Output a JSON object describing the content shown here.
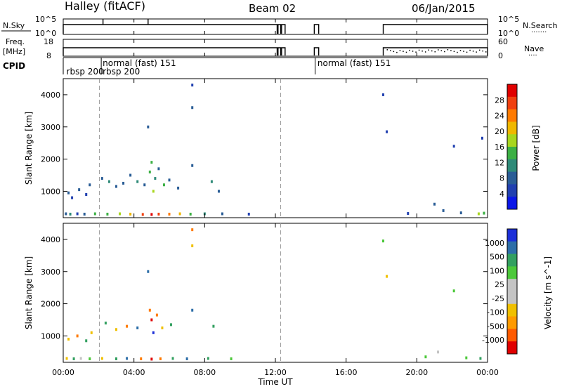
{
  "header": {
    "station": "Halley (fitACF)",
    "beam": "Beam 02",
    "date": "06/Jan/2015"
  },
  "strips": {
    "nsky_label": "N.Sky",
    "nsky_ticks": [
      "10^5",
      "10^0"
    ],
    "nsearch_label": "N.Search",
    "nsearch_ticks": [
      "10^5",
      "10^0"
    ],
    "freq_label_1": "Freq.",
    "freq_label_2": "[MHz]",
    "freq_ticks": [
      "18",
      "8"
    ],
    "nave_label": "Nave",
    "nave_ticks": [
      "60",
      "0"
    ],
    "cpid_label": "CPID",
    "cpid_entries": [
      {
        "text": "rbsp 200",
        "hour": 0.1,
        "row": "low"
      },
      {
        "text": "rbsp 200",
        "hour": 2.15,
        "row": "low"
      },
      {
        "text": "normal (fast) 151",
        "hour": 2.15,
        "row": "high"
      },
      {
        "text": "normal (fast) 151",
        "hour": 14.3,
        "row": "high"
      }
    ],
    "cpid_markers": [
      0,
      2.15,
      14.25
    ],
    "nsky_segments": [
      [
        0,
        12.1
      ],
      [
        12.15,
        12.3
      ],
      [
        12.35,
        12.55
      ],
      [
        14.2,
        14.45
      ],
      [
        18.1,
        24
      ]
    ]
  },
  "x_axis": {
    "label": "Time UT",
    "ticks": [
      "00:00",
      "04:00",
      "08:00",
      "12:00",
      "16:00",
      "20:00",
      "00:00"
    ],
    "range_hours": [
      0,
      24
    ],
    "dashed_lines_hours": [
      2.05,
      12.3
    ]
  },
  "panels": {
    "power": {
      "ylabel": "Slant Range [km]",
      "yticks": [
        "1000",
        "2000",
        "3000",
        "4000"
      ],
      "colorbar_label": "Power [dB]",
      "colorbar_ticks": [
        "4",
        "8",
        "12",
        "16",
        "20",
        "24",
        "28"
      ],
      "colorbar_colors": [
        "#0b17e8",
        "#2140b0",
        "#2a5d96",
        "#2e8a78",
        "#3cb044",
        "#a8d61e",
        "#f0b800",
        "#ff7a00",
        "#f04010",
        "#e00000"
      ]
    },
    "velocity": {
      "ylabel": "Slant Range [km]",
      "yticks": [
        "1000",
        "2000",
        "3000",
        "4000"
      ],
      "colorbar_label": "Velocity [m s^-1]",
      "colorbar_ticks": [
        "1000",
        "500",
        "100",
        "25",
        "-25",
        "-100",
        "-500",
        "-1000"
      ],
      "colorbar_colors": [
        "#1c2fd8",
        "#2d6ea8",
        "#33a060",
        "#4cc83a",
        "#c4c4c4",
        "#c4c4c4",
        "#f0c000",
        "#ff9a00",
        "#ff5a00",
        "#e00000"
      ]
    }
  },
  "chart_data": [
    {
      "type": "heatmap",
      "name": "Power",
      "title": "Halley (fitACF) Beam 02 06/Jan/2015",
      "xlabel": "Time UT",
      "ylabel": "Slant Range [km]",
      "xlim": [
        0,
        24
      ],
      "ylim": [
        180,
        4500
      ],
      "colorbar": {
        "label": "Power [dB]",
        "range": [
          0,
          30
        ],
        "ticks": [
          4,
          8,
          12,
          16,
          20,
          24,
          28
        ]
      },
      "points": [
        {
          "t": 0.15,
          "r": 300,
          "v": 6
        },
        {
          "t": 0.4,
          "r": 290,
          "v": 10
        },
        {
          "t": 0.8,
          "r": 300,
          "v": 4
        },
        {
          "t": 1.2,
          "r": 290,
          "v": 8
        },
        {
          "t": 1.8,
          "r": 300,
          "v": 12
        },
        {
          "t": 2.5,
          "r": 290,
          "v": 14
        },
        {
          "t": 3.2,
          "r": 300,
          "v": 16
        },
        {
          "t": 3.8,
          "r": 290,
          "v": 20
        },
        {
          "t": 4.5,
          "r": 280,
          "v": 24
        },
        {
          "t": 5.0,
          "r": 280,
          "v": 28
        },
        {
          "t": 5.4,
          "r": 290,
          "v": 26
        },
        {
          "t": 6.0,
          "r": 290,
          "v": 22
        },
        {
          "t": 6.6,
          "r": 300,
          "v": 18
        },
        {
          "t": 7.2,
          "r": 290,
          "v": 14
        },
        {
          "t": 8.0,
          "r": 300,
          "v": 10
        },
        {
          "t": 9.0,
          "r": 300,
          "v": 6
        },
        {
          "t": 10.5,
          "r": 290,
          "v": 4
        },
        {
          "t": 0.3,
          "r": 950,
          "v": 6
        },
        {
          "t": 0.5,
          "r": 800,
          "v": 4
        },
        {
          "t": 0.9,
          "r": 1050,
          "v": 6
        },
        {
          "t": 1.3,
          "r": 900,
          "v": 4
        },
        {
          "t": 1.5,
          "r": 1200,
          "v": 8
        },
        {
          "t": 2.2,
          "r": 1400,
          "v": 6
        },
        {
          "t": 2.6,
          "r": 1300,
          "v": 10
        },
        {
          "t": 3.0,
          "r": 1150,
          "v": 6
        },
        {
          "t": 3.4,
          "r": 1250,
          "v": 8
        },
        {
          "t": 3.8,
          "r": 1500,
          "v": 6
        },
        {
          "t": 4.2,
          "r": 1300,
          "v": 10
        },
        {
          "t": 4.6,
          "r": 1200,
          "v": 8
        },
        {
          "t": 4.9,
          "r": 1600,
          "v": 12
        },
        {
          "t": 5.0,
          "r": 1900,
          "v": 14
        },
        {
          "t": 5.1,
          "r": 1000,
          "v": 16
        },
        {
          "t": 5.2,
          "r": 1400,
          "v": 10
        },
        {
          "t": 5.4,
          "r": 1700,
          "v": 8
        },
        {
          "t": 5.7,
          "r": 1200,
          "v": 12
        },
        {
          "t": 6.0,
          "r": 1350,
          "v": 6
        },
        {
          "t": 6.5,
          "r": 1100,
          "v": 8
        },
        {
          "t": 7.3,
          "r": 1800,
          "v": 6
        },
        {
          "t": 7.3,
          "r": 4300,
          "v": 4
        },
        {
          "t": 7.3,
          "r": 3600,
          "v": 6
        },
        {
          "t": 8.4,
          "r": 1300,
          "v": 10
        },
        {
          "t": 8.8,
          "r": 1000,
          "v": 6
        },
        {
          "t": 4.8,
          "r": 3000,
          "v": 6
        },
        {
          "t": 18.1,
          "r": 4000,
          "v": 4
        },
        {
          "t": 18.3,
          "r": 2850,
          "v": 4
        },
        {
          "t": 21.0,
          "r": 600,
          "v": 6
        },
        {
          "t": 22.1,
          "r": 2400,
          "v": 4
        },
        {
          "t": 23.7,
          "r": 2650,
          "v": 4
        },
        {
          "t": 23.5,
          "r": 300,
          "v": 16
        },
        {
          "t": 23.8,
          "r": 320,
          "v": 12
        },
        {
          "t": 19.5,
          "r": 310,
          "v": 4
        },
        {
          "t": 21.5,
          "r": 400,
          "v": 6
        },
        {
          "t": 22.5,
          "r": 330,
          "v": 8
        }
      ]
    },
    {
      "type": "heatmap",
      "name": "Velocity",
      "xlabel": "Time UT",
      "ylabel": "Slant Range [km]",
      "xlim": [
        0,
        24
      ],
      "ylim": [
        180,
        4500
      ],
      "colorbar": {
        "label": "Velocity [m s^-1]",
        "ticks": [
          1000,
          500,
          100,
          25,
          -25,
          -100,
          -500,
          -1000
        ]
      },
      "points": [
        {
          "t": 0.2,
          "r": 300,
          "v": -100
        },
        {
          "t": 0.6,
          "r": 290,
          "v": 100
        },
        {
          "t": 1.0,
          "r": 300,
          "v": -25
        },
        {
          "t": 1.5,
          "r": 290,
          "v": 25
        },
        {
          "t": 2.2,
          "r": 300,
          "v": -100
        },
        {
          "t": 3.0,
          "r": 290,
          "v": 100
        },
        {
          "t": 3.6,
          "r": 300,
          "v": 500
        },
        {
          "t": 4.4,
          "r": 290,
          "v": -500
        },
        {
          "t": 5.0,
          "r": 280,
          "v": -1000
        },
        {
          "t": 5.5,
          "r": 290,
          "v": -500
        },
        {
          "t": 6.2,
          "r": 300,
          "v": 100
        },
        {
          "t": 7.0,
          "r": 290,
          "v": 500
        },
        {
          "t": 8.2,
          "r": 300,
          "v": 100
        },
        {
          "t": 9.5,
          "r": 290,
          "v": 25
        },
        {
          "t": 0.3,
          "r": 900,
          "v": -100
        },
        {
          "t": 0.8,
          "r": 1000,
          "v": -500
        },
        {
          "t": 1.3,
          "r": 850,
          "v": 100
        },
        {
          "t": 1.6,
          "r": 1100,
          "v": -100
        },
        {
          "t": 2.4,
          "r": 1400,
          "v": 100
        },
        {
          "t": 3.0,
          "r": 1200,
          "v": -100
        },
        {
          "t": 3.6,
          "r": 1300,
          "v": -500
        },
        {
          "t": 4.2,
          "r": 1250,
          "v": 500
        },
        {
          "t": 4.9,
          "r": 1800,
          "v": -500
        },
        {
          "t": 5.0,
          "r": 1500,
          "v": -1000
        },
        {
          "t": 5.1,
          "r": 1100,
          "v": 1000
        },
        {
          "t": 5.3,
          "r": 1650,
          "v": -500
        },
        {
          "t": 5.6,
          "r": 1250,
          "v": -100
        },
        {
          "t": 6.1,
          "r": 1350,
          "v": 100
        },
        {
          "t": 7.3,
          "r": 4300,
          "v": -500
        },
        {
          "t": 7.3,
          "r": 3800,
          "v": -100
        },
        {
          "t": 7.3,
          "r": 1800,
          "v": 500
        },
        {
          "t": 8.5,
          "r": 1300,
          "v": 100
        },
        {
          "t": 4.8,
          "r": 3000,
          "v": 500
        },
        {
          "t": 18.1,
          "r": 3950,
          "v": 25
        },
        {
          "t": 18.3,
          "r": 2850,
          "v": -100
        },
        {
          "t": 22.1,
          "r": 2400,
          "v": 25
        },
        {
          "t": 20.5,
          "r": 350,
          "v": 25
        },
        {
          "t": 21.2,
          "r": 500,
          "v": -25
        },
        {
          "t": 22.8,
          "r": 320,
          "v": 25
        },
        {
          "t": 23.6,
          "r": 300,
          "v": 100
        }
      ]
    }
  ]
}
